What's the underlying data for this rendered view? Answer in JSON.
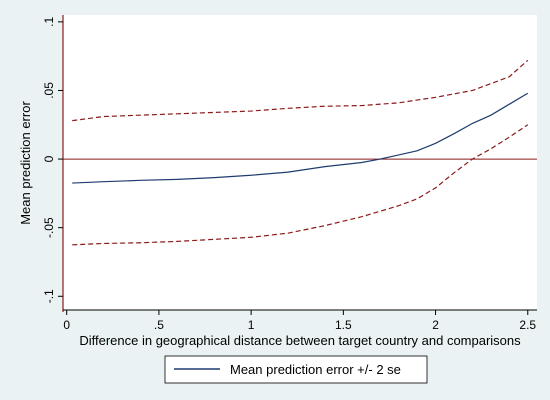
{
  "chart_data": {
    "type": "line",
    "xlabel": "Difference in geographical distance between target country and comparisons",
    "ylabel": "Mean prediction error",
    "xlim": [
      -0.02,
      2.55
    ],
    "ylim": [
      -0.11,
      0.105
    ],
    "x_ticks": [
      0,
      0.5,
      1,
      1.5,
      2,
      2.5
    ],
    "x_tick_labels": [
      "0",
      ".5",
      "1",
      "1.5",
      "2",
      "2.5"
    ],
    "y_ticks": [
      0.1,
      0.05,
      0,
      -0.05,
      -0.1
    ],
    "y_tick_labels": [
      ".1",
      ".05",
      "0",
      "-.05",
      "-.1"
    ],
    "reference_line_y": 0,
    "grid": false,
    "legend_position": "bottom",
    "legend_entries": [
      "Mean prediction error +/- 2 se"
    ],
    "series": [
      {
        "role": "mean",
        "style": "solid",
        "color": "#1f3c6e",
        "x": [
          0.03,
          0.2,
          0.4,
          0.6,
          0.8,
          1.0,
          1.2,
          1.4,
          1.6,
          1.7,
          1.8,
          1.9,
          2.0,
          2.1,
          2.2,
          2.3,
          2.4,
          2.5
        ],
        "y": [
          -0.0175,
          -0.0165,
          -0.0155,
          -0.0148,
          -0.0135,
          -0.0118,
          -0.0095,
          -0.0055,
          -0.0025,
          0.0,
          0.003,
          0.006,
          0.0115,
          0.0185,
          0.026,
          0.032,
          0.04,
          0.048
        ]
      },
      {
        "role": "upper band (+2 se)",
        "style": "dashed",
        "color": "#8b1a1a",
        "x": [
          0.03,
          0.2,
          0.4,
          0.6,
          0.8,
          1.0,
          1.2,
          1.4,
          1.6,
          1.8,
          2.0,
          2.2,
          2.4,
          2.5
        ],
        "y": [
          0.028,
          0.031,
          0.032,
          0.033,
          0.034,
          0.035,
          0.037,
          0.0385,
          0.039,
          0.041,
          0.045,
          0.05,
          0.06,
          0.072
        ]
      },
      {
        "role": "lower band (-2 se)",
        "style": "dashed",
        "color": "#8b1a1a",
        "x": [
          0.03,
          0.2,
          0.4,
          0.6,
          0.8,
          1.0,
          1.2,
          1.4,
          1.6,
          1.8,
          1.9,
          2.0,
          2.1,
          2.2,
          2.3,
          2.4,
          2.5
        ],
        "y": [
          -0.0625,
          -0.0615,
          -0.061,
          -0.06,
          -0.0585,
          -0.057,
          -0.054,
          -0.0485,
          -0.042,
          -0.034,
          -0.029,
          -0.021,
          -0.01,
          0.0,
          0.0075,
          0.016,
          0.025
        ]
      }
    ]
  }
}
